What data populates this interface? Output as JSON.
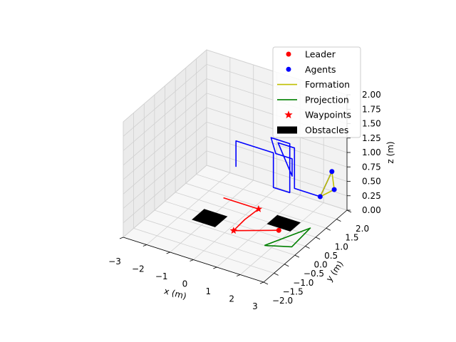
{
  "chart_data": {
    "type": "line3d",
    "xlabel": "x (m)",
    "ylabel": "y (m)",
    "zlabel": "z (m)",
    "xlim": [
      -3,
      3
    ],
    "ylim": [
      -2,
      2
    ],
    "zlim": [
      0,
      2
    ],
    "x_ticks": [
      "−3",
      "−2",
      "−1",
      "0",
      "1",
      "2",
      "3"
    ],
    "y_ticks": [
      "−2.0",
      "−1.5",
      "−1.0",
      "−0.5",
      "0.0",
      "0.5",
      "1.0",
      "1.5",
      "2.0"
    ],
    "z_ticks": [
      "0.00",
      "0.25",
      "0.50",
      "0.75",
      "1.00",
      "1.25",
      "1.50",
      "1.75",
      "2.00"
    ],
    "legend": {
      "placement": "top-right",
      "entries": [
        {
          "label": "Leader",
          "kind": "dot",
          "color": "#ff0000"
        },
        {
          "label": "Agents",
          "kind": "dot",
          "color": "#0000ff"
        },
        {
          "label": "Formation",
          "kind": "line",
          "color": "#bfbf00"
        },
        {
          "label": "Projection",
          "kind": "line",
          "color": "#008000"
        },
        {
          "label": "Waypoints",
          "kind": "star",
          "color": "#ff0000"
        },
        {
          "label": "Obstacles",
          "kind": "rect",
          "color": "#000000"
        }
      ]
    },
    "series": [
      {
        "name": "Leader",
        "color": "#ff0000",
        "points": [
          [
            -1.3,
            0.9,
            0
          ],
          [
            0.2,
            0.9,
            0
          ],
          [
            0.15,
            0.3,
            0
          ],
          [
            0.2,
            -0.3,
            0
          ],
          [
            1.6,
            0.3,
            0
          ]
        ]
      },
      {
        "name": "Agents",
        "color": "#0000ff",
        "points": [
          [
            -1.3,
            1.5,
            0.35
          ],
          [
            -1.3,
            1.5,
            0.8
          ],
          [
            0.3,
            1.5,
            0.8
          ],
          [
            0.3,
            1.5,
            0.2
          ],
          [
            1.0,
            1.5,
            0.2
          ],
          [
            1.0,
            1.5,
            1.05
          ],
          [
            0.2,
            1.5,
            1.05
          ],
          [
            0.4,
            1.5,
            0.8
          ],
          [
            1.1,
            1.5,
            0.8
          ],
          [
            1.1,
            1.5,
            0.5
          ],
          [
            0.5,
            1.5,
            1.0
          ],
          [
            1.2,
            1.5,
            1.0
          ],
          [
            1.2,
            1.5,
            0.3
          ],
          [
            2.3,
            1.5,
            0.3
          ],
          [
            2.8,
            1.5,
            0.8
          ]
        ]
      },
      {
        "name": "Formation",
        "color": "#bfbf00",
        "points": [
          [
            2.3,
            1.5,
            0.3
          ],
          [
            2.8,
            1.5,
            0.8
          ],
          [
            2.9,
            1.5,
            0.5
          ],
          [
            2.3,
            1.5,
            0.3
          ]
        ]
      },
      {
        "name": "Projection",
        "color": "#008000",
        "points": [
          [
            1.7,
            -0.5,
            0
          ],
          [
            2.6,
            -0.2,
            0
          ],
          [
            2.5,
            0.8,
            0
          ],
          [
            1.7,
            -0.5,
            0
          ]
        ]
      }
    ],
    "agents": [
      [
        2.3,
        1.5,
        0.3
      ],
      [
        2.8,
        1.5,
        0.8
      ],
      [
        2.9,
        1.5,
        0.5
      ]
    ],
    "leader": [
      1.6,
      0.3,
      0
    ],
    "waypoints": [
      [
        0.2,
        0.9,
        0
      ],
      [
        0.2,
        -0.3,
        0
      ]
    ],
    "obstacles": [
      {
        "x": [
          -1.5,
          -0.5
        ],
        "y": [
          -0.4,
          0.2
        ]
      },
      {
        "x": [
          1.0,
          2.0
        ],
        "y": [
          0.4,
          0.9
        ]
      }
    ]
  }
}
